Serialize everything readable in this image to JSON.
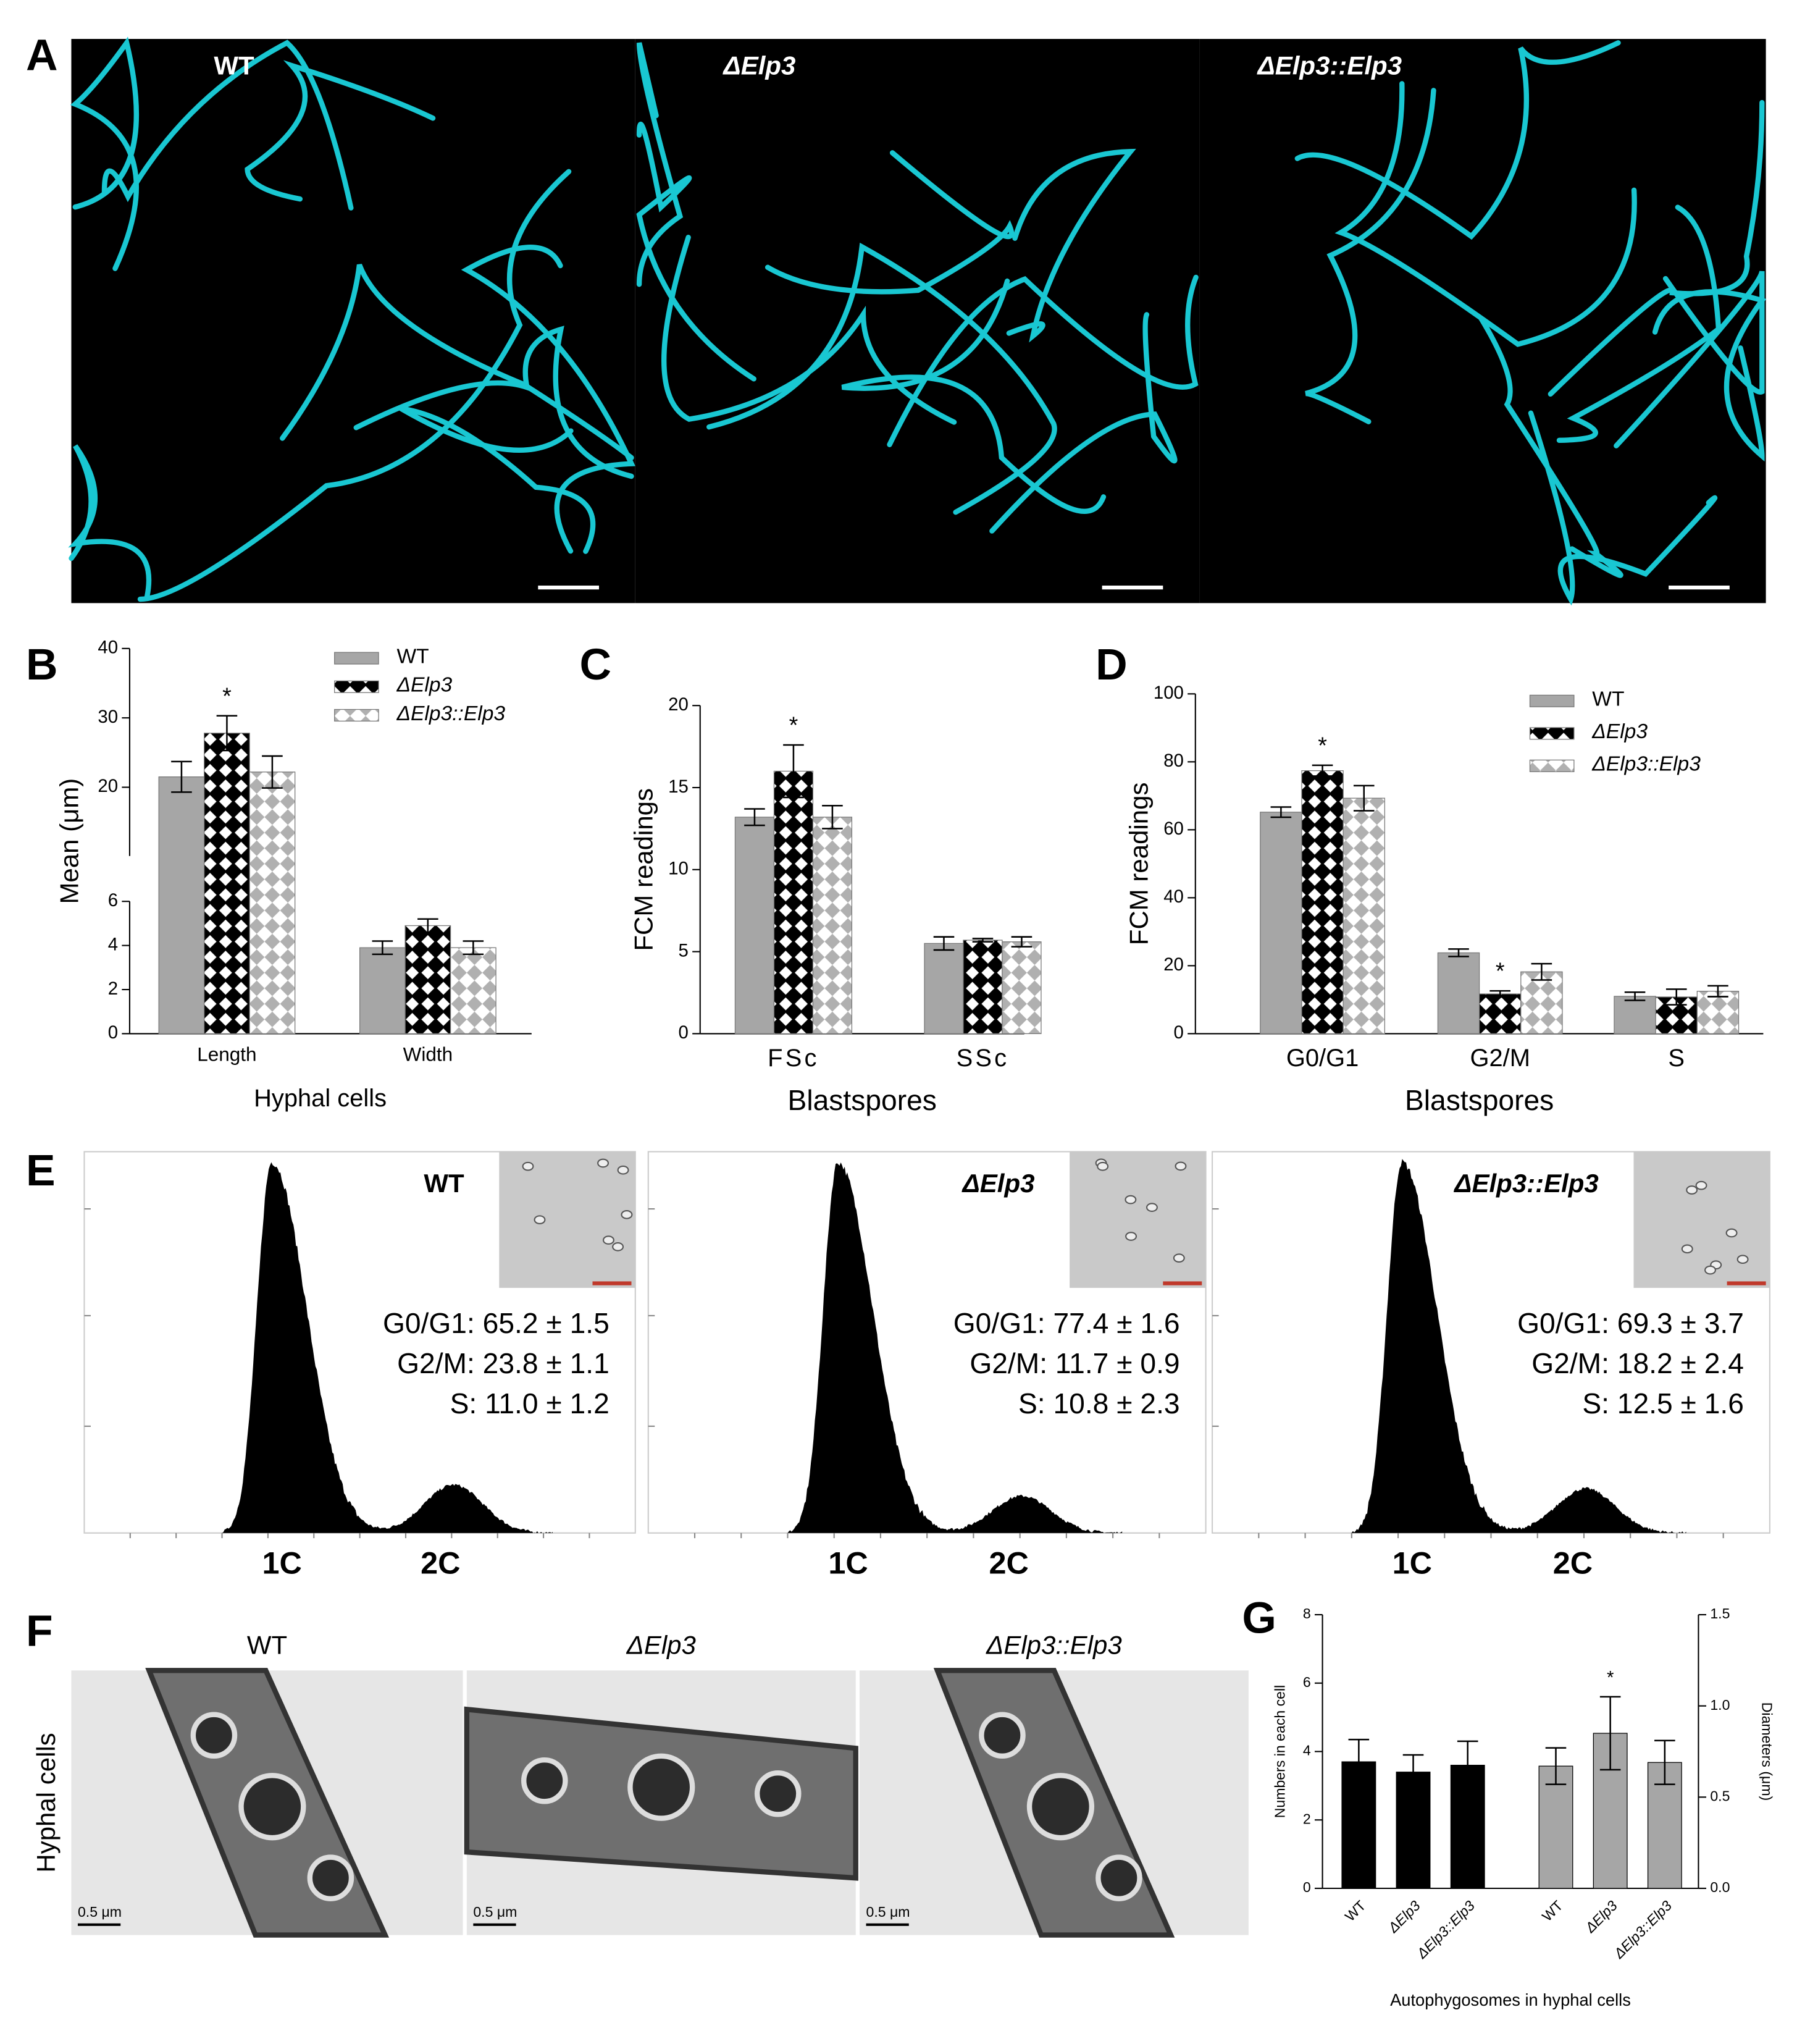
{
  "panel_A": {
    "letter": "A",
    "labels": [
      "WT",
      "ΔElp3",
      "ΔElp3::Elp3"
    ]
  },
  "chart_data": [
    {
      "panel": "B",
      "type": "bar",
      "categories": [
        "Length",
        "Width"
      ],
      "xlabel": "Hyphal cells",
      "ylabel": "Mean (μm)",
      "ylim": [
        0,
        40
      ],
      "ybreak": [
        6,
        20
      ],
      "yticks": [
        0,
        2,
        4,
        6,
        20,
        30,
        40
      ],
      "legend": "upper right",
      "series": [
        {
          "name": "WT",
          "color": "#a6a6a6",
          "pattern": "solid",
          "values": [
            21.5,
            3.9
          ],
          "errors": [
            2.2,
            0.3
          ]
        },
        {
          "name": "ΔElp3",
          "color": "#000000",
          "pattern": "check",
          "values": [
            27.8,
            4.9
          ],
          "errors": [
            2.5,
            0.3
          ],
          "significance": [
            "*",
            null
          ]
        },
        {
          "name": "ΔElp3::Elp3",
          "color": "#b0b0b0",
          "pattern": "diamond",
          "values": [
            22.2,
            3.9
          ],
          "errors": [
            2.3,
            0.3
          ]
        }
      ]
    },
    {
      "panel": "C",
      "type": "bar",
      "categories": [
        "FSc",
        "SSc"
      ],
      "xlabel": "Blastspores",
      "ylabel": "FCM readings",
      "ylim": [
        0,
        20
      ],
      "yticks": [
        0,
        5,
        10,
        15,
        20
      ],
      "series": [
        {
          "color": "#a6a6a6",
          "pattern": "solid",
          "values": [
            13.2,
            5.5
          ],
          "errors": [
            0.5,
            0.4
          ]
        },
        {
          "color": "#000000",
          "pattern": "check",
          "values": [
            16.0,
            5.7
          ],
          "errors": [
            1.6,
            0.1
          ],
          "significance": [
            "*",
            null
          ]
        },
        {
          "color": "#b0b0b0",
          "pattern": "diamond",
          "values": [
            13.2,
            5.6
          ],
          "errors": [
            0.7,
            0.3
          ]
        }
      ]
    },
    {
      "panel": "D",
      "type": "bar",
      "categories": [
        "G0/G1",
        "G2/M",
        "S"
      ],
      "xlabel": "Blastspores",
      "ylabel": "FCM readings",
      "ylim": [
        0,
        100
      ],
      "yticks": [
        0,
        20,
        40,
        60,
        80,
        100
      ],
      "legend": "upper right",
      "series": [
        {
          "name": "WT",
          "color": "#a6a6a6",
          "pattern": "solid",
          "values": [
            65.2,
            23.8,
            11.0
          ],
          "errors": [
            1.5,
            1.1,
            1.2
          ]
        },
        {
          "name": "ΔElp3",
          "color": "#000000",
          "pattern": "check",
          "values": [
            77.4,
            11.7,
            10.8
          ],
          "errors": [
            1.6,
            0.9,
            2.3
          ],
          "significance": [
            "*",
            "*",
            null
          ]
        },
        {
          "name": "ΔElp3::Elp3",
          "color": "#b0b0b0",
          "pattern": "diamond",
          "values": [
            69.3,
            18.2,
            12.5
          ],
          "errors": [
            3.7,
            2.4,
            1.6
          ]
        }
      ]
    },
    {
      "panel": "G",
      "type": "bar",
      "categories": [
        "WT",
        "ΔElp3",
        "ΔElp3::Elp3",
        "WT",
        "ΔElp3",
        "ΔElp3::Elp3"
      ],
      "xlabel": "Autophygosomes in hyphal cells",
      "ylabel": "Numbers in each cell",
      "y2label": "Diameters (μm)",
      "ylim": [
        0,
        8
      ],
      "yticks": [
        0,
        2,
        4,
        6,
        8
      ],
      "y2lim": [
        0,
        1.5
      ],
      "y2ticks": [
        {
          "value": 0,
          "label": "0.0"
        },
        {
          "value": 0.5,
          "label": "0.5"
        },
        {
          "value": 1,
          "label": "1.0"
        },
        {
          "value": 1.5,
          "label": "1.5"
        }
      ],
      "series": [
        {
          "color": "#000000",
          "pattern": "solid",
          "values": [
            3.7,
            3.4,
            3.6,
            null,
            null,
            null
          ],
          "errors": [
            0.65,
            0.5,
            0.7,
            null,
            null,
            null
          ]
        },
        {
          "color": "#a6a6a6",
          "pattern": "solid",
          "axis": "y2",
          "values": [
            null,
            null,
            null,
            0.67,
            0.85,
            0.69
          ],
          "errors": [
            null,
            null,
            null,
            0.1,
            0.2,
            0.12
          ],
          "significance": [
            null,
            null,
            null,
            null,
            "*",
            null
          ]
        }
      ]
    }
  ],
  "panel_E": {
    "letter": "E",
    "peaks": [
      "1C",
      "2C"
    ],
    "plots": [
      {
        "title": "WT",
        "stats": [
          "G0/G1: 65.2 ± 1.5",
          "G2/M: 23.8 ± 1.1",
          "S: 11.0 ± 1.2"
        ]
      },
      {
        "title": "ΔElp3",
        "stats": [
          "G0/G1: 77.4 ± 1.6",
          "G2/M: 11.7 ± 0.9",
          "S: 10.8 ± 2.3"
        ]
      },
      {
        "title": "ΔElp3::Elp3",
        "stats": [
          "G0/G1: 69.3 ± 3.7",
          "G2/M: 18.2 ± 2.4",
          "S: 12.5 ± 1.6"
        ]
      }
    ]
  },
  "panel_F": {
    "letter": "F",
    "side_label": "Hyphal cells",
    "labels": [
      "WT",
      "ΔElp3",
      "ΔElp3::Elp3"
    ],
    "scale_bar": "0.5 μm"
  }
}
